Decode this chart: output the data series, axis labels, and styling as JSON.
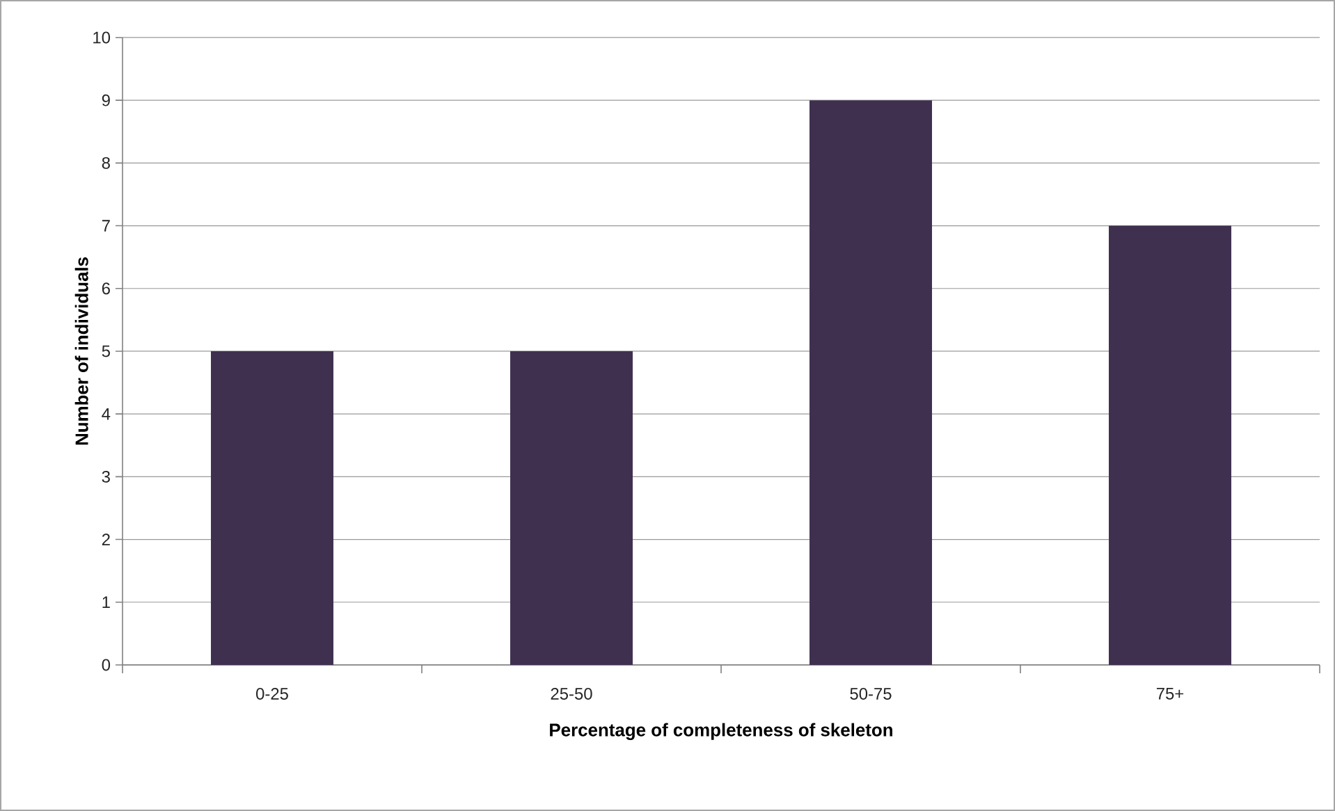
{
  "chart_data": {
    "type": "bar",
    "xlabel": "Percentage of completeness of skeleton",
    "ylabel": "Number of individuals",
    "categories": [
      "0-25",
      "25-50",
      "50-75",
      "75+"
    ],
    "values": [
      5,
      5,
      9,
      7
    ],
    "color": "#3f3050",
    "ylim": [
      0,
      10
    ],
    "yticks": [
      0,
      1,
      2,
      3,
      4,
      5,
      6,
      7,
      8,
      9,
      10
    ],
    "grid": "y"
  }
}
